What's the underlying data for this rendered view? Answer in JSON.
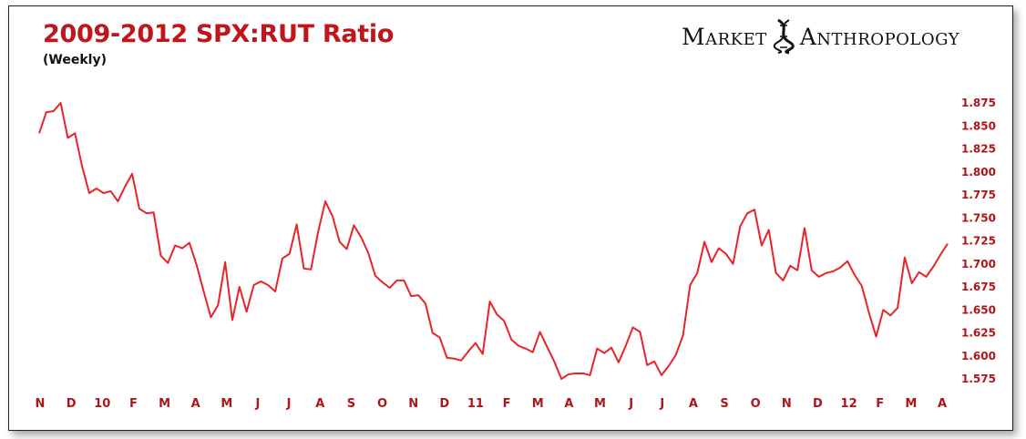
{
  "chart_data": {
    "type": "line",
    "title": "2009-2012 SPX:RUT Ratio",
    "subtitle": "(Weekly)",
    "ylim": [
      1.575,
      1.875
    ],
    "yticks": [
      "1.875",
      "1.850",
      "1.825",
      "1.800",
      "1.775",
      "1.750",
      "1.725",
      "1.700",
      "1.675",
      "1.650",
      "1.625",
      "1.600",
      "1.575"
    ],
    "xticks": [
      "N",
      "D",
      "10",
      "F",
      "M",
      "A",
      "M",
      "J",
      "J",
      "A",
      "S",
      "O",
      "N",
      "D",
      "11",
      "F",
      "M",
      "A",
      "M",
      "J",
      "J",
      "A",
      "S",
      "O",
      "N",
      "D",
      "12",
      "F",
      "M",
      "A"
    ],
    "grid": false,
    "legend": "none",
    "line_color": "#e8242a",
    "series": [
      {
        "values": [
          1.842,
          1.865,
          1.866,
          1.875,
          1.837,
          1.842,
          1.806,
          1.777,
          1.782,
          1.777,
          1.779,
          1.768,
          1.784,
          1.798,
          1.76,
          1.755,
          1.756,
          1.709,
          1.701,
          1.72,
          1.717,
          1.723,
          1.699,
          1.67,
          1.642,
          1.655,
          1.702,
          1.639,
          1.675,
          1.648,
          1.677,
          1.681,
          1.677,
          1.67,
          1.706,
          1.711,
          1.743,
          1.695,
          1.694,
          1.735,
          1.768,
          1.752,
          1.724,
          1.716,
          1.742,
          1.729,
          1.712,
          1.687,
          1.68,
          1.674,
          1.682,
          1.682,
          1.665,
          1.666,
          1.657,
          1.625,
          1.62,
          1.598,
          1.597,
          1.595,
          1.605,
          1.614,
          1.602,
          1.659,
          1.645,
          1.638,
          1.618,
          1.611,
          1.608,
          1.604,
          1.626,
          1.61,
          1.594,
          1.575,
          1.58,
          1.581,
          1.581,
          1.579,
          1.608,
          1.603,
          1.609,
          1.593,
          1.611,
          1.631,
          1.626,
          1.59,
          1.594,
          1.579,
          1.589,
          1.601,
          1.622,
          1.677,
          1.69,
          1.724,
          1.702,
          1.717,
          1.711,
          1.7,
          1.741,
          1.755,
          1.759,
          1.72,
          1.737,
          1.69,
          1.682,
          1.698,
          1.693,
          1.739,
          1.693,
          1.686,
          1.69,
          1.692,
          1.696,
          1.703,
          1.688,
          1.676,
          1.647,
          1.621,
          1.65,
          1.644,
          1.652,
          1.707,
          1.679,
          1.691,
          1.686,
          1.697,
          1.71,
          1.722
        ]
      }
    ]
  },
  "brand": {
    "word1": "Market",
    "word2": "Anthropology",
    "logo_icon": "dna-helix-icon"
  }
}
